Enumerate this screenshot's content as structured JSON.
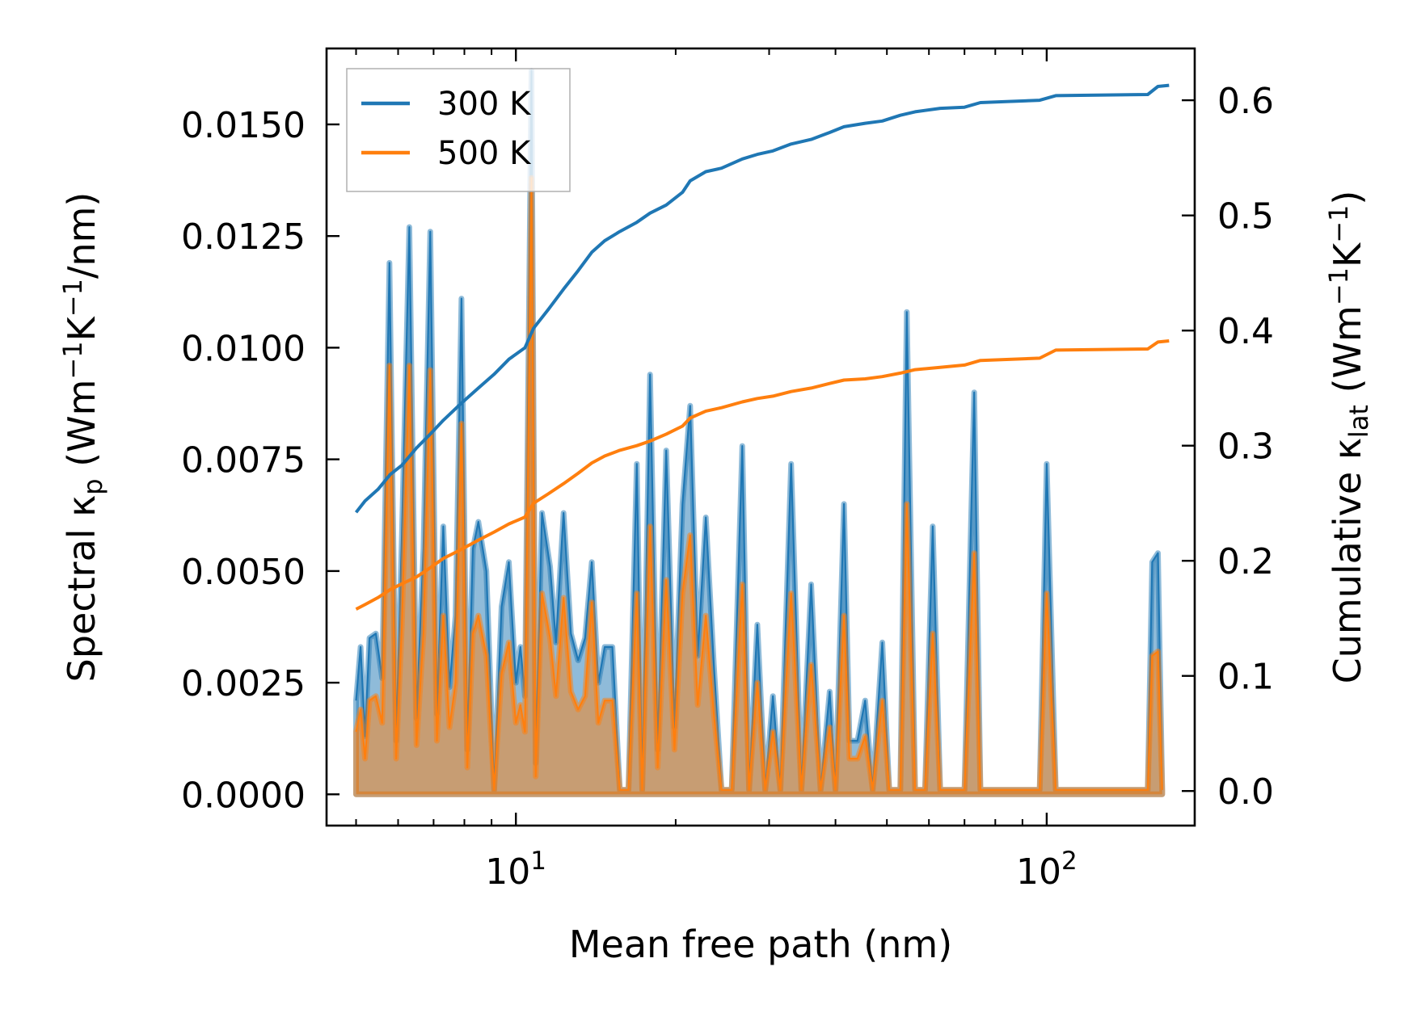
{
  "chart_data": {
    "type": "line",
    "xscale": "log",
    "xlabel": "Mean free path (nm)",
    "xlim": [
      4.4,
      190
    ],
    "x_ticks": [
      {
        "value": 10,
        "base": "10",
        "exp": "1"
      },
      {
        "value": 100,
        "base": "10",
        "exp": "2"
      }
    ],
    "y_left": {
      "label_prefix": "Spectral κ",
      "label_sub": "p",
      "label_units": [
        {
          "t": " (Wm",
          "s": false
        },
        {
          "t": "−1",
          "s": true
        },
        {
          "t": "K",
          "s": false
        },
        {
          "t": "−1",
          "s": true
        },
        {
          "t": "/nm)",
          "s": false
        }
      ],
      "lim": [
        -0.0007,
        0.0167
      ],
      "ticks": [
        0.0,
        0.0025,
        0.005,
        0.0075,
        0.01,
        0.0125,
        0.015
      ],
      "tick_labels": [
        "0.0000",
        "0.0025",
        "0.0050",
        "0.0075",
        "0.0100",
        "0.0125",
        "0.0150"
      ]
    },
    "y_right": {
      "label_prefix": "Cumulative κ",
      "label_sub": "lat",
      "label_units": [
        {
          "t": " (Wm",
          "s": false
        },
        {
          "t": "−1",
          "s": true
        },
        {
          "t": "K",
          "s": false
        },
        {
          "t": "−1",
          "s": true
        },
        {
          "t": ")",
          "s": false
        }
      ],
      "lim": [
        -0.03,
        0.645
      ],
      "ticks": [
        0.0,
        0.1,
        0.2,
        0.3,
        0.4,
        0.5,
        0.6
      ],
      "tick_labels": [
        "0.0",
        "0.1",
        "0.2",
        "0.3",
        "0.4",
        "0.5",
        "0.6"
      ]
    },
    "legend": {
      "position": "top-left",
      "entries": [
        {
          "label": "300 K",
          "color": "#1f77b4"
        },
        {
          "label": "500 K",
          "color": "#ff7f0e"
        }
      ]
    },
    "spectral_series": [
      {
        "name": "300 K",
        "color": "#1f77b4",
        "points": [
          [
            5.0,
            0.0021
          ],
          [
            5.1,
            0.0033
          ],
          [
            5.2,
            0.0013
          ],
          [
            5.3,
            0.0035
          ],
          [
            5.45,
            0.0036
          ],
          [
            5.6,
            0.0026
          ],
          [
            5.78,
            0.0119
          ],
          [
            5.95,
            0.0012
          ],
          [
            6.1,
            0.0058
          ],
          [
            6.3,
            0.0127
          ],
          [
            6.5,
            0.0017
          ],
          [
            6.7,
            0.0055
          ],
          [
            6.9,
            0.0126
          ],
          [
            7.1,
            0.0018
          ],
          [
            7.3,
            0.006
          ],
          [
            7.5,
            0.0024
          ],
          [
            7.7,
            0.004
          ],
          [
            7.9,
            0.0111
          ],
          [
            8.1,
            0.001
          ],
          [
            8.3,
            0.0055
          ],
          [
            8.5,
            0.0061
          ],
          [
            8.8,
            0.005
          ],
          [
            9.1,
            0.0001
          ],
          [
            9.4,
            0.0042
          ],
          [
            9.7,
            0.0052
          ],
          [
            10.0,
            0.0025
          ],
          [
            10.2,
            0.0033
          ],
          [
            10.4,
            0.0022
          ],
          [
            10.7,
            0.0162
          ],
          [
            10.9,
            0.0007
          ],
          [
            11.2,
            0.0063
          ],
          [
            11.6,
            0.0051
          ],
          [
            11.9,
            0.0034
          ],
          [
            12.3,
            0.0063
          ],
          [
            12.7,
            0.0036
          ],
          [
            13.1,
            0.003
          ],
          [
            13.5,
            0.0035
          ],
          [
            13.9,
            0.0052
          ],
          [
            14.3,
            0.0025
          ],
          [
            14.7,
            0.0033
          ],
          [
            15.2,
            0.0033
          ],
          [
            15.7,
            0.0001
          ],
          [
            16.3,
            0.0001
          ],
          [
            16.9,
            0.0074
          ],
          [
            17.3,
            0.0001
          ],
          [
            17.9,
            0.0094
          ],
          [
            18.5,
            0.001
          ],
          [
            19.2,
            0.0077
          ],
          [
            19.9,
            0.0015
          ],
          [
            20.6,
            0.0065
          ],
          [
            21.3,
            0.0087
          ],
          [
            22.0,
            0.0031
          ],
          [
            22.8,
            0.0062
          ],
          [
            23.6,
            0.0029
          ],
          [
            24.4,
            0.0001
          ],
          [
            25.5,
            0.0001
          ],
          [
            26.7,
            0.0078
          ],
          [
            27.5,
            0.0001
          ],
          [
            28.5,
            0.0038
          ],
          [
            29.5,
            0.0001
          ],
          [
            30.5,
            0.0022
          ],
          [
            31.5,
            0.0001
          ],
          [
            33.0,
            0.0074
          ],
          [
            34.5,
            0.0001
          ],
          [
            36.0,
            0.0047
          ],
          [
            37.5,
            0.0001
          ],
          [
            39.0,
            0.0023
          ],
          [
            40.0,
            0.0001
          ],
          [
            41.5,
            0.0065
          ],
          [
            42.5,
            0.0012
          ],
          [
            44.0,
            0.0012
          ],
          [
            45.5,
            0.0021
          ],
          [
            47.0,
            0.0001
          ],
          [
            49.0,
            0.0034
          ],
          [
            50.5,
            0.0001
          ],
          [
            53.0,
            0.0001
          ],
          [
            54.5,
            0.0108
          ],
          [
            56.5,
            0.0001
          ],
          [
            59.0,
            0.0001
          ],
          [
            61.0,
            0.006
          ],
          [
            63.0,
            0.0001
          ],
          [
            70.0,
            0.0001
          ],
          [
            73.0,
            0.009
          ],
          [
            75.0,
            0.0001
          ],
          [
            97.0,
            0.0001
          ],
          [
            100.0,
            0.0074
          ],
          [
            104.0,
            0.0001
          ],
          [
            155.0,
            0.0001
          ],
          [
            158.0,
            0.0052
          ],
          [
            162.0,
            0.0054
          ],
          [
            165.0,
            0.0001
          ]
        ]
      },
      {
        "name": "500 K",
        "color": "#ff7f0e",
        "points": [
          [
            5.0,
            0.0014
          ],
          [
            5.1,
            0.0019
          ],
          [
            5.2,
            0.0008
          ],
          [
            5.3,
            0.0021
          ],
          [
            5.45,
            0.0022
          ],
          [
            5.6,
            0.0016
          ],
          [
            5.78,
            0.0096
          ],
          [
            5.95,
            0.0008
          ],
          [
            6.1,
            0.0038
          ],
          [
            6.3,
            0.0096
          ],
          [
            6.5,
            0.0011
          ],
          [
            6.7,
            0.0036
          ],
          [
            6.9,
            0.0095
          ],
          [
            7.1,
            0.0012
          ],
          [
            7.3,
            0.004
          ],
          [
            7.5,
            0.0015
          ],
          [
            7.7,
            0.0025
          ],
          [
            7.9,
            0.0083
          ],
          [
            8.1,
            0.0006
          ],
          [
            8.3,
            0.0036
          ],
          [
            8.5,
            0.004
          ],
          [
            8.8,
            0.0031
          ],
          [
            9.1,
            0.0001
          ],
          [
            9.4,
            0.0027
          ],
          [
            9.7,
            0.0034
          ],
          [
            10.0,
            0.0016
          ],
          [
            10.2,
            0.002
          ],
          [
            10.4,
            0.0014
          ],
          [
            10.7,
            0.0138
          ],
          [
            10.9,
            0.0004
          ],
          [
            11.2,
            0.0045
          ],
          [
            11.6,
            0.0035
          ],
          [
            11.9,
            0.0022
          ],
          [
            12.3,
            0.0044
          ],
          [
            12.7,
            0.0023
          ],
          [
            13.1,
            0.0019
          ],
          [
            13.5,
            0.0022
          ],
          [
            13.9,
            0.0043
          ],
          [
            14.3,
            0.0016
          ],
          [
            14.7,
            0.0021
          ],
          [
            15.2,
            0.0021
          ],
          [
            15.7,
            0.0001
          ],
          [
            16.3,
            0.0001
          ],
          [
            16.9,
            0.0045
          ],
          [
            17.3,
            0.0001
          ],
          [
            17.9,
            0.006
          ],
          [
            18.5,
            0.0006
          ],
          [
            19.2,
            0.0048
          ],
          [
            19.9,
            0.001
          ],
          [
            20.6,
            0.0045
          ],
          [
            21.3,
            0.0058
          ],
          [
            22.0,
            0.002
          ],
          [
            22.8,
            0.004
          ],
          [
            23.6,
            0.0018
          ],
          [
            24.4,
            0.0001
          ],
          [
            25.5,
            0.0001
          ],
          [
            26.7,
            0.0047
          ],
          [
            27.5,
            0.0001
          ],
          [
            28.5,
            0.0025
          ],
          [
            29.5,
            0.0001
          ],
          [
            30.5,
            0.0014
          ],
          [
            31.5,
            0.0001
          ],
          [
            33.0,
            0.0045
          ],
          [
            34.5,
            0.0001
          ],
          [
            36.0,
            0.0029
          ],
          [
            37.5,
            0.0001
          ],
          [
            39.0,
            0.0015
          ],
          [
            40.0,
            0.0001
          ],
          [
            41.5,
            0.004
          ],
          [
            42.5,
            0.0008
          ],
          [
            44.0,
            0.0008
          ],
          [
            45.5,
            0.0013
          ],
          [
            47.0,
            0.0001
          ],
          [
            49.0,
            0.0021
          ],
          [
            50.5,
            0.0001
          ],
          [
            53.0,
            0.0001
          ],
          [
            54.5,
            0.0065
          ],
          [
            56.5,
            0.0001
          ],
          [
            59.0,
            0.0001
          ],
          [
            61.0,
            0.0036
          ],
          [
            63.0,
            0.0001
          ],
          [
            70.0,
            0.0001
          ],
          [
            73.0,
            0.0054
          ],
          [
            75.0,
            0.0001
          ],
          [
            97.0,
            0.0001
          ],
          [
            100.0,
            0.0045
          ],
          [
            104.0,
            0.0001
          ],
          [
            155.0,
            0.0001
          ],
          [
            158.0,
            0.0031
          ],
          [
            162.0,
            0.0032
          ],
          [
            165.0,
            0.0001
          ]
        ]
      }
    ],
    "cumulative_series": [
      {
        "name": "300 K",
        "color": "#1f77b4",
        "points": [
          [
            5.0,
            0.242
          ],
          [
            5.2,
            0.252
          ],
          [
            5.5,
            0.262
          ],
          [
            5.8,
            0.275
          ],
          [
            6.1,
            0.283
          ],
          [
            6.5,
            0.298
          ],
          [
            6.9,
            0.31
          ],
          [
            7.3,
            0.322
          ],
          [
            7.9,
            0.337
          ],
          [
            8.5,
            0.35
          ],
          [
            9.1,
            0.362
          ],
          [
            9.7,
            0.375
          ],
          [
            10.4,
            0.385
          ],
          [
            10.8,
            0.402
          ],
          [
            11.5,
            0.418
          ],
          [
            12.3,
            0.436
          ],
          [
            13.1,
            0.452
          ],
          [
            13.9,
            0.468
          ],
          [
            14.7,
            0.478
          ],
          [
            15.7,
            0.486
          ],
          [
            16.9,
            0.494
          ],
          [
            17.9,
            0.502
          ],
          [
            19.2,
            0.509
          ],
          [
            20.6,
            0.52
          ],
          [
            21.3,
            0.53
          ],
          [
            22.8,
            0.538
          ],
          [
            24.4,
            0.541
          ],
          [
            26.7,
            0.549
          ],
          [
            28.5,
            0.553
          ],
          [
            30.5,
            0.556
          ],
          [
            33.0,
            0.562
          ],
          [
            36.0,
            0.566
          ],
          [
            39.0,
            0.572
          ],
          [
            41.5,
            0.577
          ],
          [
            45.5,
            0.58
          ],
          [
            49.0,
            0.582
          ],
          [
            53.0,
            0.587
          ],
          [
            56.5,
            0.59
          ],
          [
            63.0,
            0.593
          ],
          [
            70.0,
            0.594
          ],
          [
            75.0,
            0.598
          ],
          [
            97.0,
            0.6
          ],
          [
            104.0,
            0.604
          ],
          [
            155.0,
            0.605
          ],
          [
            162.0,
            0.612
          ],
          [
            170.0,
            0.613
          ]
        ]
      },
      {
        "name": "500 K",
        "color": "#ff7f0e",
        "points": [
          [
            5.0,
            0.158
          ],
          [
            5.2,
            0.162
          ],
          [
            5.5,
            0.168
          ],
          [
            5.8,
            0.175
          ],
          [
            6.1,
            0.18
          ],
          [
            6.5,
            0.186
          ],
          [
            6.9,
            0.194
          ],
          [
            7.3,
            0.202
          ],
          [
            7.9,
            0.21
          ],
          [
            8.5,
            0.218
          ],
          [
            9.1,
            0.225
          ],
          [
            9.7,
            0.232
          ],
          [
            10.4,
            0.238
          ],
          [
            10.8,
            0.25
          ],
          [
            11.5,
            0.258
          ],
          [
            12.3,
            0.267
          ],
          [
            13.1,
            0.276
          ],
          [
            13.9,
            0.285
          ],
          [
            14.7,
            0.291
          ],
          [
            15.7,
            0.296
          ],
          [
            16.9,
            0.3
          ],
          [
            17.9,
            0.304
          ],
          [
            19.2,
            0.31
          ],
          [
            20.6,
            0.317
          ],
          [
            21.3,
            0.324
          ],
          [
            22.8,
            0.33
          ],
          [
            24.4,
            0.333
          ],
          [
            26.7,
            0.338
          ],
          [
            28.5,
            0.341
          ],
          [
            30.5,
            0.343
          ],
          [
            33.0,
            0.347
          ],
          [
            36.0,
            0.35
          ],
          [
            39.0,
            0.354
          ],
          [
            41.5,
            0.357
          ],
          [
            45.5,
            0.358
          ],
          [
            49.0,
            0.36
          ],
          [
            53.0,
            0.363
          ],
          [
            56.5,
            0.366
          ],
          [
            63.0,
            0.368
          ],
          [
            70.0,
            0.37
          ],
          [
            75.0,
            0.374
          ],
          [
            97.0,
            0.376
          ],
          [
            104.0,
            0.383
          ],
          [
            155.0,
            0.384
          ],
          [
            162.0,
            0.39
          ],
          [
            170.0,
            0.391
          ]
        ]
      }
    ]
  }
}
